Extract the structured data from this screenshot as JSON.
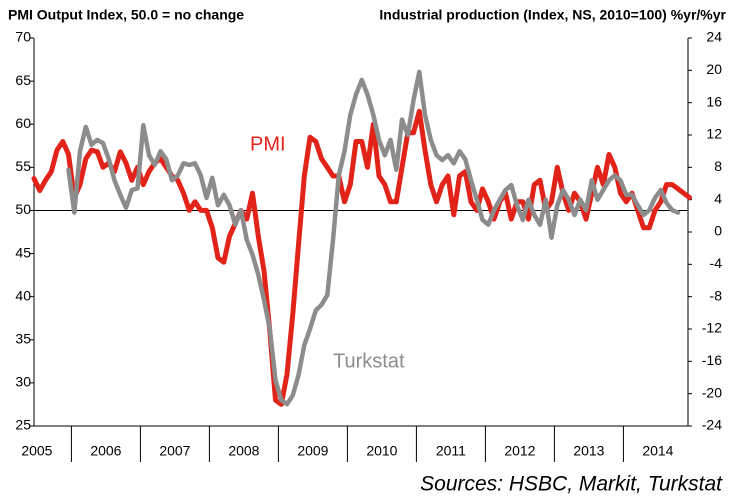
{
  "chart_data": {
    "type": "line",
    "title": "PMI Output Index, 50.0 = no change",
    "y2_title": "Industrial production (Index, NS, 2010=100) %yr/%yr",
    "source": "Sources: HSBC, Markit, Turkstat",
    "categories": [
      "2005",
      "2006",
      "2007",
      "2008",
      "2009",
      "2010",
      "2011",
      "2012",
      "2013",
      "2014"
    ],
    "ylim": [
      25,
      70
    ],
    "yticks": [
      25,
      30,
      35,
      40,
      45,
      50,
      55,
      60,
      65,
      70
    ],
    "y2lim": [
      -24,
      24
    ],
    "y2ticks": [
      -24,
      -20,
      -16,
      -12,
      -8,
      -4,
      0,
      4,
      8,
      12,
      16,
      20,
      24
    ],
    "reference_line": 50,
    "series": [
      {
        "name": "PMI",
        "color": "#e2231a",
        "values": [
          [
            null,
            null,
            null,
            null,
            null,
            53.7,
            52.3,
            53.5,
            54.5,
            57,
            58,
            56.5
          ],
          [
            51.5,
            53,
            56,
            57,
            56.8,
            55,
            55.5,
            54.5,
            56.8,
            55.5,
            53.5,
            55
          ],
          [
            53,
            54.5,
            55.5,
            56,
            55,
            54,
            53.5,
            52,
            50,
            51,
            50,
            50
          ],
          [
            48,
            44.5,
            44,
            47,
            48.5,
            50,
            49,
            52,
            47,
            43,
            36,
            28
          ],
          [
            27.5,
            31,
            38,
            46,
            54,
            58.5,
            58,
            56,
            55,
            54,
            54,
            51
          ],
          [
            53,
            58,
            58,
            55,
            60,
            54,
            53,
            51,
            51,
            55,
            59,
            59
          ],
          [
            61.5,
            57,
            53,
            51,
            53,
            54,
            49.5,
            54,
            54.5,
            51,
            50,
            52.5
          ],
          [
            51,
            49,
            51,
            52,
            49,
            51,
            51,
            49,
            53,
            53.5,
            50,
            51
          ],
          [
            55,
            52,
            50,
            52,
            51,
            49,
            52,
            55,
            53,
            56.5,
            55,
            52
          ],
          [
            51,
            52,
            50,
            48,
            48,
            50,
            51,
            53,
            53,
            52.5,
            52,
            51.5
          ]
        ]
      },
      {
        "name": "Turkstat",
        "color": "#8c8c8c",
        "axis": "y2",
        "values": [
          [
            null,
            null,
            null,
            null,
            null,
            null,
            null,
            null,
            null,
            null,
            null,
            7.7
          ],
          [
            2.4,
            10,
            13,
            10.8,
            11.4,
            11,
            9,
            6.4,
            4.6,
            3,
            5.2,
            5.4
          ],
          [
            13.2,
            9.5,
            8.3,
            10,
            9,
            6.4,
            7,
            8.5,
            8.3,
            8.5,
            7,
            4.2
          ],
          [
            6.7,
            3.3,
            4.6,
            3.3,
            0.9,
            2.7,
            -1,
            -2.8,
            -5.3,
            -8.4,
            -12,
            -18.3
          ],
          [
            -20.8,
            -21.3,
            -20.2,
            -17.7,
            -14,
            -12,
            -9.7,
            -9,
            -7.8,
            -1,
            7,
            10
          ],
          [
            14.5,
            17,
            18.8,
            17,
            14.5,
            11.4,
            9.5,
            11.4,
            7.7,
            13.9,
            12,
            16.3
          ],
          [
            19.8,
            14.5,
            11.4,
            9.5,
            8.9,
            9.5,
            8.5,
            10,
            9,
            6.4,
            4,
            1.5
          ],
          [
            0.9,
            2.7,
            4,
            5.2,
            5.8,
            3.3,
            1.5,
            4,
            2.1,
            0.9,
            4,
            -0.7
          ],
          [
            3.3,
            5.2,
            4,
            2.1,
            4,
            2.7,
            6.4,
            4,
            5.2,
            6.4,
            7,
            6.4
          ],
          [
            4.6,
            4.6,
            3.3,
            2.1,
            2.7,
            4.2,
            5.2,
            3.6,
            2.7,
            2.4
          ]
        ]
      }
    ]
  }
}
